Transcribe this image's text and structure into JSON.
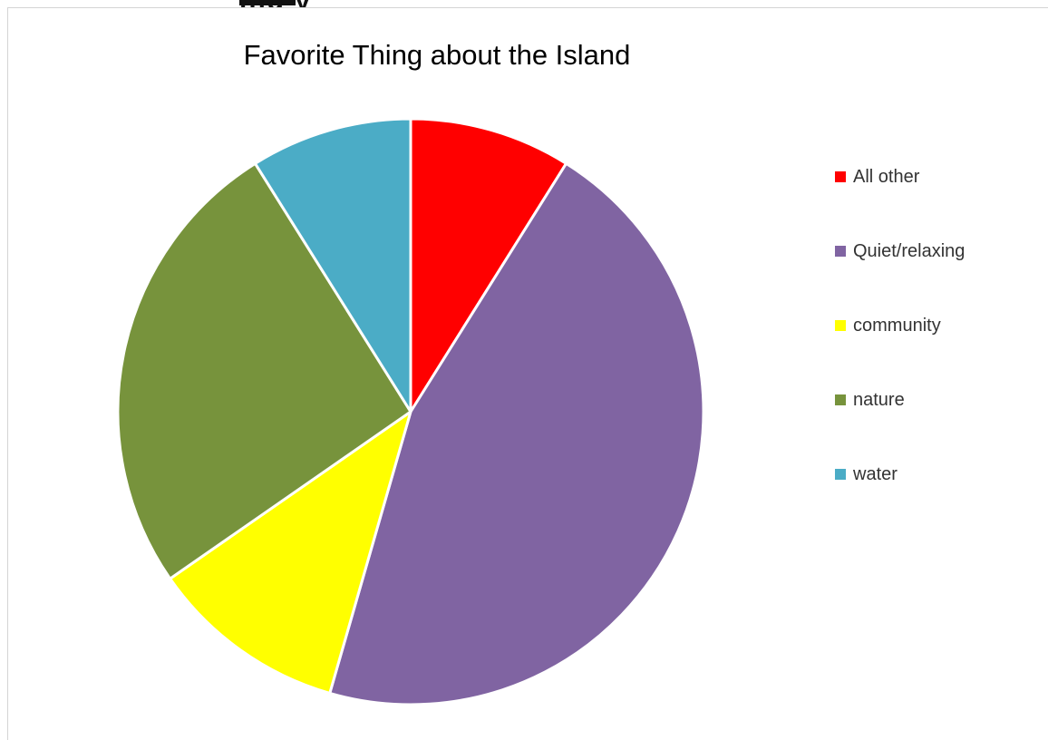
{
  "header_fragment": {
    "visible_text": "ing y"
  },
  "chart_data": {
    "type": "pie",
    "title": "Favorite Thing about the Island",
    "legend_position": "right",
    "slices": [
      {
        "label": "All other",
        "value": 9,
        "color": "#FF0000"
      },
      {
        "label": "Quiet/relaxing",
        "value": 46,
        "color": "#8064A2"
      },
      {
        "label": "community",
        "value": 11,
        "color": "#FFFF00"
      },
      {
        "label": "nature",
        "value": 26,
        "color": "#77933C"
      },
      {
        "label": "water",
        "value": 9,
        "color": "#4BACC6"
      }
    ],
    "start_angle_deg": 0,
    "direction": "clockwise"
  }
}
